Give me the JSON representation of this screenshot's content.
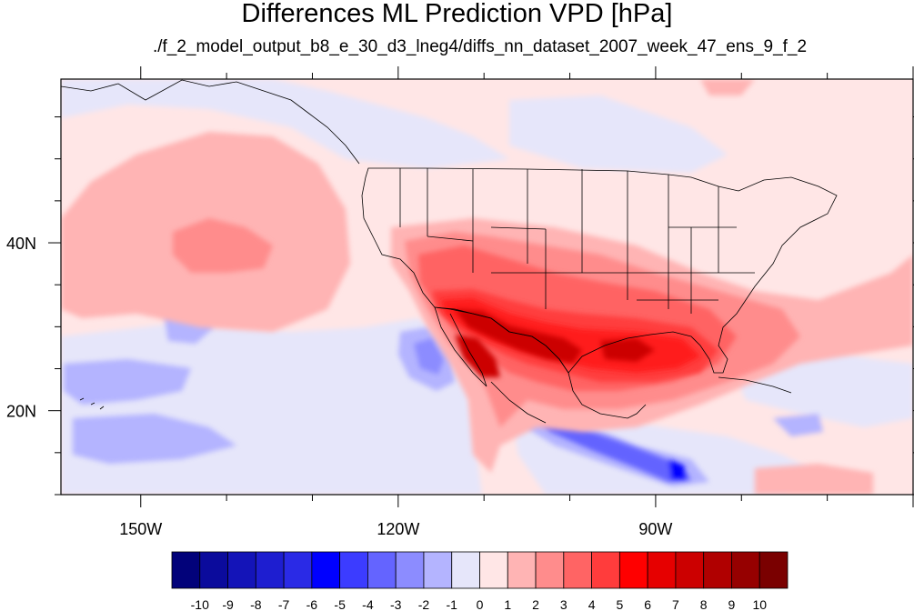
{
  "title": "Differences ML Prediction VPD [hPa]",
  "subtitle": "./f_2_model_output_b8_e_30_d3_lneg4/diffs_nn_dataset_2007_week_47_ens_9_f_2",
  "axes": {
    "y_ticks": [
      {
        "value": 40,
        "label": "40N"
      },
      {
        "value": 20,
        "label": "20N"
      }
    ],
    "x_ticks": [
      {
        "value": -150,
        "label": "150W"
      },
      {
        "value": -120,
        "label": "120W"
      },
      {
        "value": -90,
        "label": "90W"
      }
    ],
    "lon_range": [
      -159.3,
      -60
    ],
    "lat_range": [
      10,
      59.5
    ]
  },
  "colorbar": {
    "labels": [
      "-10",
      "-9",
      "-8",
      "-7",
      "-6",
      "-5",
      "-4",
      "-3",
      "-2",
      "-1",
      "0",
      "1",
      "2",
      "3",
      "4",
      "5",
      "6",
      "7",
      "8",
      "9",
      "10"
    ],
    "colors": [
      "#02027a",
      "#0b0b9c",
      "#1414b8",
      "#1e1ed0",
      "#2a2ae6",
      "#0000ff",
      "#3c3cff",
      "#6464ff",
      "#8c8cff",
      "#b4b4ff",
      "#e6e6fa",
      "#ffe6e6",
      "#ffb4b4",
      "#ff8c8c",
      "#ff6464",
      "#ff3c3c",
      "#ff0000",
      "#e60000",
      "#cc0000",
      "#b00000",
      "#960000",
      "#7a0000"
    ]
  },
  "chart_data": {
    "type": "heatmap",
    "title": "Differences ML Prediction VPD [hPa]",
    "subtitle": "./f_2_model_output_b8_e_30_d3_lneg4/diffs_nn_dataset_2007_week_47_ens_9_f_2",
    "x_ticks": [
      "150W",
      "120W",
      "90W"
    ],
    "y_ticks": [
      "40N",
      "20N"
    ],
    "zlim": [
      -10,
      10
    ],
    "levels": [
      -10,
      -9,
      -8,
      -7,
      -6,
      -5,
      -4,
      -3,
      -2,
      -1,
      0,
      1,
      2,
      3,
      4,
      5,
      6,
      7,
      8,
      9,
      10
    ]
  }
}
